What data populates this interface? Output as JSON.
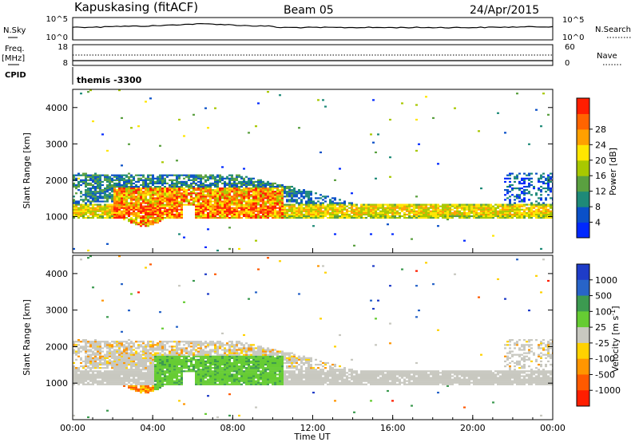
{
  "header": {
    "station": "Kapuskasing (fitACF)",
    "beam": "Beam 05",
    "date": "24/Apr/2015"
  },
  "nsky_panel": {
    "left_label": "N.Sky",
    "right_label": "N.Search",
    "left_ticks": [
      "10^5",
      "10^0"
    ],
    "right_ticks": [
      "10^5",
      "10^0"
    ]
  },
  "freq_panel": {
    "left_label_1": "Freq.",
    "left_label_2": "[MHz]",
    "right_label": "Nave",
    "left_ticks": [
      "18",
      "8"
    ],
    "right_ticks": [
      "60",
      "0"
    ]
  },
  "cpid_panel": {
    "label": "CPID",
    "program": "themis -3300"
  },
  "time_axis": {
    "label": "Time UT",
    "ticks": [
      "00:00",
      "04:00",
      "08:00",
      "12:00",
      "16:00",
      "20:00",
      "00:00"
    ]
  },
  "chart_data": [
    {
      "type": "heatmap",
      "name": "power",
      "ylabel": "Slant Range [km]",
      "xlabel": "",
      "x_range_hours": [
        0,
        24
      ],
      "ylim": [
        0,
        4500
      ],
      "y_ticks": [
        1000,
        2000,
        3000,
        4000
      ],
      "colorbar": {
        "label": "Power [dB]",
        "ticks": [
          "4",
          "8",
          "12",
          "16",
          "20",
          "24",
          "28"
        ],
        "colors": [
          "#0028ff",
          "#0a50c8",
          "#1e8a78",
          "#5aa040",
          "#a8c800",
          "#ffe600",
          "#ffa000",
          "#ff6400",
          "#ff1e00"
        ]
      },
      "features": [
        {
          "desc": "main echo band",
          "t_start": 0,
          "t_end": 24,
          "range_km": [
            900,
            1300
          ],
          "level": "high"
        },
        {
          "desc": "enhanced region",
          "t_start": 2,
          "t_end": 10.5,
          "range_km": [
            700,
            1800
          ],
          "level": "very high"
        },
        {
          "desc": "upper scatter",
          "t_start": 0,
          "t_end": 11,
          "range_km": [
            1300,
            2200
          ],
          "level": "low"
        }
      ]
    },
    {
      "type": "heatmap",
      "name": "velocity",
      "ylabel": "Slant Range [km]",
      "xlabel": "Time UT",
      "x_range_hours": [
        0,
        24
      ],
      "ylim": [
        0,
        4500
      ],
      "y_ticks": [
        1000,
        2000,
        3000,
        4000
      ],
      "colorbar": {
        "label": "Velocity [m s-1]",
        "label_main": "Velocity [m s",
        "label_sup": "-1",
        "label_end": "]",
        "ticks": [
          "1000",
          "500",
          "100",
          "25",
          "-25",
          "-100",
          "-500",
          "-1000"
        ],
        "colors": [
          "#1e3cc8",
          "#2864c8",
          "#3c9a50",
          "#66cc33",
          "#c8c8c0",
          "#ffd200",
          "#ff9600",
          "#ff5a00",
          "#ff1e00"
        ]
      },
      "features": [
        {
          "desc": "ground scatter band",
          "t_start": 0,
          "t_end": 24,
          "range_km": [
            900,
            1350
          ],
          "velocity": "near zero"
        },
        {
          "desc": "positive velocity region",
          "t_start": 4,
          "t_end": 10.5,
          "range_km": [
            800,
            1700
          ],
          "velocity": "100 to 500"
        },
        {
          "desc": "negative velocity region",
          "t_start": 2.5,
          "t_end": 4.5,
          "range_km": [
            700,
            1300
          ],
          "velocity": "-100 to -500"
        }
      ]
    }
  ]
}
